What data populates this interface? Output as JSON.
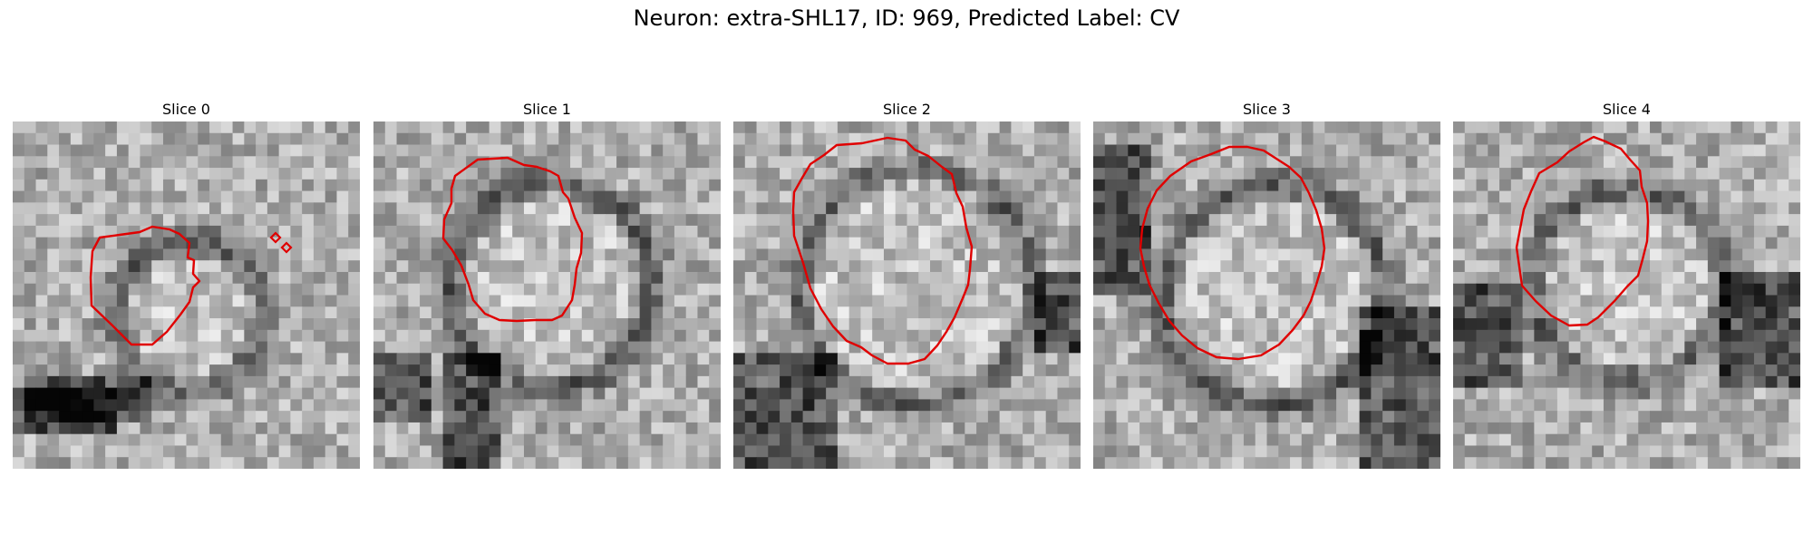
{
  "figure": {
    "title": "Neuron: extra-SHL17, ID: 969, Predicted Label: CV"
  },
  "colors": {
    "contour": "#e00000",
    "background": "#ffffff"
  },
  "panels": [
    {
      "title": "Slice 0"
    },
    {
      "title": "Slice 1"
    },
    {
      "title": "Slice 2"
    },
    {
      "title": "Slice 3"
    },
    {
      "title": "Slice 4"
    }
  ]
}
